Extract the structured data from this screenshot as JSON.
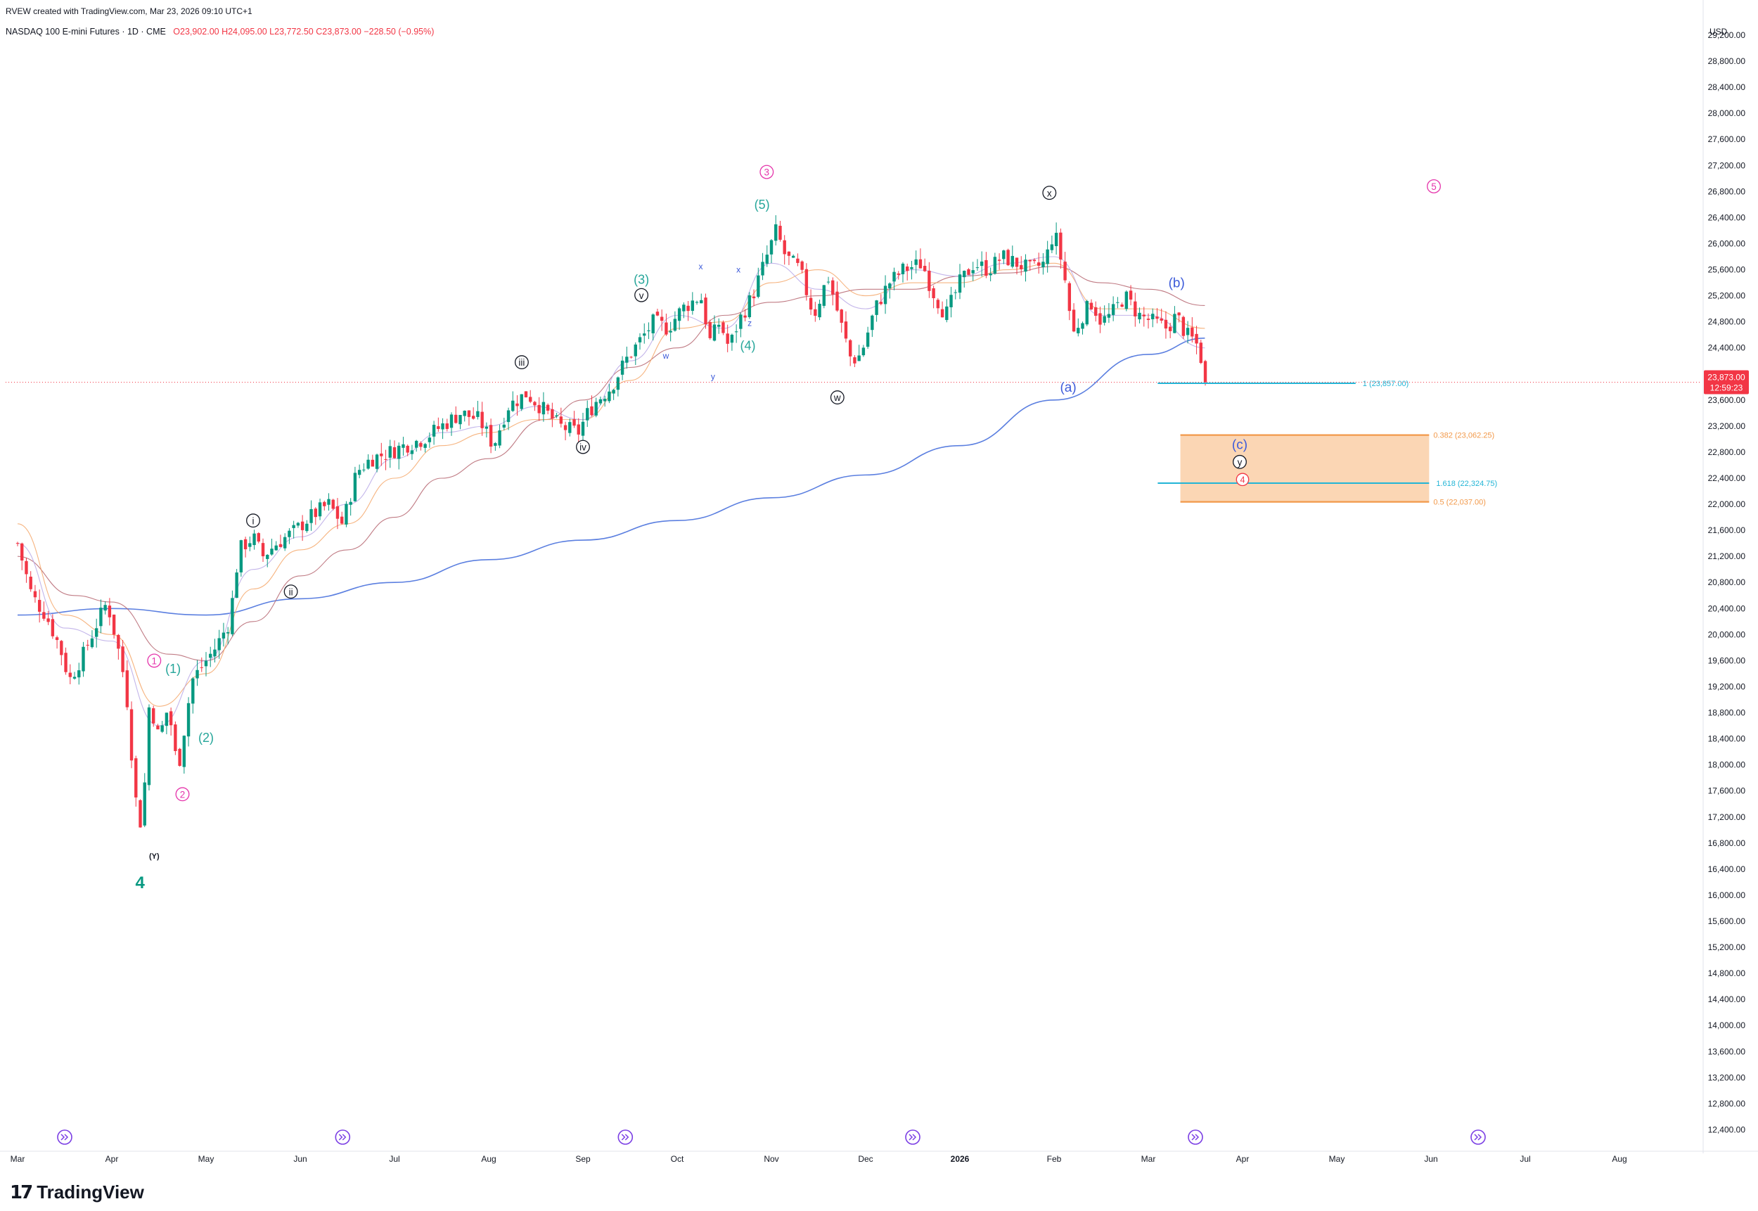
{
  "header": {
    "created_by": "RVEW created with TradingView.com, Mar 23, 2026 09:10 UTC+1",
    "symbol": "NASDAQ 100 E-mini Futures · 1D · CME",
    "ohlc": "O23,902.00 H24,095.00 L23,772.50 C23,873.00 −228.50 (−0.95%)"
  },
  "colors": {
    "up": "#089981",
    "down": "#f23645",
    "ma200": "#5b7fe0",
    "ma_brown": "#b5646e",
    "ma_orange": "#f5a76a",
    "ma_lavender": "#b9a8e6",
    "pink": "#e535ab",
    "teal": "#26a69a",
    "blue_label": "#3d5bd9",
    "fib_line": "#22b5d6",
    "zone_fill": "#f9c89b",
    "zone_border": "#f2994a"
  },
  "chart_data": {
    "type": "candlestick",
    "currency": "USD",
    "y_axis": {
      "range": [
        12200,
        29200
      ],
      "ticks": [
        "12,400.00",
        "12,800.00",
        "13,200.00",
        "13,600.00",
        "14,000.00",
        "14,400.00",
        "14,800.00",
        "15,200.00",
        "15,600.00",
        "16,000.00",
        "16,400.00",
        "16,800.00",
        "17,200.00",
        "17,600.00",
        "18,000.00",
        "18,400.00",
        "18,800.00",
        "19,200.00",
        "19,600.00",
        "20,000.00",
        "20,400.00",
        "20,800.00",
        "21,200.00",
        "21,600.00",
        "22,000.00",
        "22,400.00",
        "22,800.00",
        "23,200.00",
        "23,600.00",
        "24,000.00",
        "24,400.00",
        "24,800.00",
        "25,200.00",
        "25,600.00",
        "26,000.00",
        "26,400.00",
        "26,800.00",
        "27,200.00",
        "27,600.00",
        "28,000.00",
        "28,400.00",
        "28,800.00",
        "29,200.00"
      ],
      "last_price": "23,873.00",
      "countdown": "12:59:23",
      "last_value": 23873
    },
    "x_axis": {
      "labels": [
        {
          "text": "Mar",
          "month": 0
        },
        {
          "text": "Apr",
          "month": 1
        },
        {
          "text": "May",
          "month": 2
        },
        {
          "text": "Jun",
          "month": 3
        },
        {
          "text": "Jul",
          "month": 4
        },
        {
          "text": "Aug",
          "month": 5
        },
        {
          "text": "Sep",
          "month": 6
        },
        {
          "text": "Oct",
          "month": 7
        },
        {
          "text": "Nov",
          "month": 8
        },
        {
          "text": "Dec",
          "month": 9
        },
        {
          "text": "2026",
          "month": 10,
          "bold": true
        },
        {
          "text": "Feb",
          "month": 11
        },
        {
          "text": "Mar",
          "month": 12
        },
        {
          "text": "Apr",
          "month": 13
        },
        {
          "text": "May",
          "month": 14
        },
        {
          "text": "Jun",
          "month": 15
        },
        {
          "text": "Jul",
          "month": 16
        },
        {
          "text": "Aug",
          "month": 17
        }
      ]
    },
    "price_path": [
      [
        0.0,
        21400
      ],
      [
        0.15,
        20600
      ],
      [
        0.3,
        20300
      ],
      [
        0.45,
        19800
      ],
      [
        0.55,
        19300
      ],
      [
        0.7,
        19700
      ],
      [
        0.85,
        20200
      ],
      [
        0.95,
        20500
      ],
      [
        1.05,
        19900
      ],
      [
        1.15,
        19200
      ],
      [
        1.25,
        17500
      ],
      [
        1.32,
        17000
      ],
      [
        1.4,
        19000
      ],
      [
        1.5,
        18400
      ],
      [
        1.6,
        18900
      ],
      [
        1.7,
        17900
      ],
      [
        1.85,
        19300
      ],
      [
        2.0,
        19600
      ],
      [
        2.1,
        19800
      ],
      [
        2.25,
        20200
      ],
      [
        2.35,
        21300
      ],
      [
        2.5,
        21500
      ],
      [
        2.6,
        21200
      ],
      [
        2.75,
        21400
      ],
      [
        2.95,
        21600
      ],
      [
        3.1,
        21800
      ],
      [
        3.3,
        22000
      ],
      [
        3.45,
        21700
      ],
      [
        3.6,
        22500
      ],
      [
        3.75,
        22700
      ],
      [
        3.95,
        22800
      ],
      [
        4.1,
        22900
      ],
      [
        4.3,
        23000
      ],
      [
        4.5,
        23200
      ],
      [
        4.7,
        23400
      ],
      [
        4.9,
        23300
      ],
      [
        5.05,
        22900
      ],
      [
        5.2,
        23500
      ],
      [
        5.4,
        23700
      ],
      [
        5.55,
        23500
      ],
      [
        5.75,
        23200
      ],
      [
        5.95,
        23100
      ],
      [
        6.05,
        23400
      ],
      [
        6.15,
        23600
      ],
      [
        6.3,
        23800
      ],
      [
        6.45,
        24200
      ],
      [
        6.6,
        24500
      ],
      [
        6.75,
        24800
      ],
      [
        6.9,
        24700
      ],
      [
        7.05,
        25000
      ],
      [
        7.25,
        25200
      ],
      [
        7.35,
        24500
      ],
      [
        7.45,
        24800
      ],
      [
        7.55,
        24400
      ],
      [
        7.65,
        24800
      ],
      [
        7.8,
        25200
      ],
      [
        7.95,
        25800
      ],
      [
        8.05,
        26200
      ],
      [
        8.15,
        25800
      ],
      [
        8.3,
        25600
      ],
      [
        8.45,
        24900
      ],
      [
        8.6,
        25500
      ],
      [
        8.75,
        24700
      ],
      [
        8.85,
        24200
      ],
      [
        8.95,
        24300
      ],
      [
        9.1,
        25000
      ],
      [
        9.25,
        25400
      ],
      [
        9.4,
        25600
      ],
      [
        9.6,
        25700
      ],
      [
        9.7,
        25300
      ],
      [
        9.85,
        24900
      ],
      [
        10.0,
        25400
      ],
      [
        10.15,
        25700
      ],
      [
        10.3,
        25600
      ],
      [
        10.45,
        25800
      ],
      [
        10.6,
        25700
      ],
      [
        10.75,
        25600
      ],
      [
        10.9,
        25700
      ],
      [
        11.0,
        26200
      ],
      [
        11.1,
        25600
      ],
      [
        11.2,
        24600
      ],
      [
        11.3,
        24900
      ],
      [
        11.4,
        25100
      ],
      [
        11.5,
        24800
      ],
      [
        11.6,
        24900
      ],
      [
        11.75,
        25200
      ],
      [
        11.9,
        24900
      ],
      [
        12.05,
        24800
      ],
      [
        12.2,
        24700
      ],
      [
        12.3,
        24900
      ],
      [
        12.4,
        24600
      ],
      [
        12.5,
        24500
      ],
      [
        12.55,
        24300
      ],
      [
        12.62,
        23873
      ]
    ],
    "moving_averages": [
      {
        "period": 200,
        "color_key": "ma200",
        "path": [
          [
            0,
            20300
          ],
          [
            1,
            20400
          ],
          [
            2,
            20300
          ],
          [
            3,
            20550
          ],
          [
            4,
            20800
          ],
          [
            5,
            21150
          ],
          [
            6,
            21450
          ],
          [
            7,
            21750
          ],
          [
            8,
            22100
          ],
          [
            9,
            22450
          ],
          [
            10,
            22900
          ],
          [
            11,
            23600
          ],
          [
            12,
            24300
          ],
          [
            12.6,
            24550
          ]
        ]
      },
      {
        "period": 50,
        "color_key": "ma_brown",
        "path": [
          [
            0,
            21200
          ],
          [
            0.6,
            20600
          ],
          [
            1,
            20500
          ],
          [
            1.6,
            19700
          ],
          [
            2,
            19600
          ],
          [
            2.5,
            20200
          ],
          [
            3,
            20900
          ],
          [
            3.5,
            21300
          ],
          [
            4,
            21800
          ],
          [
            4.5,
            22400
          ],
          [
            5,
            22700
          ],
          [
            5.6,
            23300
          ],
          [
            6,
            23600
          ],
          [
            6.5,
            24100
          ],
          [
            7,
            24400
          ],
          [
            7.5,
            24900
          ],
          [
            8,
            25100
          ],
          [
            8.5,
            25200
          ],
          [
            9,
            25300
          ],
          [
            9.5,
            25300
          ],
          [
            10,
            25500
          ],
          [
            10.5,
            25550
          ],
          [
            11,
            25650
          ],
          [
            11.5,
            25400
          ],
          [
            12,
            25300
          ],
          [
            12.6,
            25050
          ]
        ]
      },
      {
        "period": 20,
        "color_key": "ma_orange",
        "path": [
          [
            0,
            21700
          ],
          [
            0.5,
            20300
          ],
          [
            1,
            20000
          ],
          [
            1.5,
            18900
          ],
          [
            2,
            19400
          ],
          [
            2.5,
            20700
          ],
          [
            3,
            21300
          ],
          [
            3.5,
            21700
          ],
          [
            4,
            22400
          ],
          [
            4.5,
            22900
          ],
          [
            5,
            23100
          ],
          [
            5.5,
            23300
          ],
          [
            6,
            23300
          ],
          [
            6.5,
            23900
          ],
          [
            7,
            24700
          ],
          [
            7.5,
            24800
          ],
          [
            8,
            25400
          ],
          [
            8.5,
            25600
          ],
          [
            9,
            25200
          ],
          [
            9.5,
            25400
          ],
          [
            10,
            25400
          ],
          [
            10.5,
            25600
          ],
          [
            11,
            25700
          ],
          [
            11.5,
            25000
          ],
          [
            12,
            25000
          ],
          [
            12.6,
            24700
          ]
        ]
      },
      {
        "period": 10,
        "color_key": "ma_lavender",
        "path": [
          [
            0,
            21400
          ],
          [
            0.5,
            20100
          ],
          [
            1,
            19900
          ],
          [
            1.5,
            18600
          ],
          [
            2,
            19600
          ],
          [
            2.5,
            21000
          ],
          [
            3,
            21500
          ],
          [
            3.5,
            22000
          ],
          [
            4,
            22700
          ],
          [
            4.5,
            23100
          ],
          [
            5,
            23200
          ],
          [
            5.5,
            23500
          ],
          [
            6,
            23300
          ],
          [
            6.5,
            24200
          ],
          [
            7,
            24900
          ],
          [
            7.5,
            24700
          ],
          [
            8,
            25700
          ],
          [
            8.5,
            25300
          ],
          [
            9,
            25000
          ],
          [
            9.5,
            25600
          ],
          [
            10,
            25500
          ],
          [
            10.5,
            25700
          ],
          [
            11,
            25800
          ],
          [
            11.5,
            24900
          ],
          [
            12,
            24900
          ],
          [
            12.6,
            24400
          ]
        ]
      }
    ],
    "wave_labels": [
      {
        "text": "4",
        "month": 1.3,
        "price": 16200,
        "color_key": "up",
        "size": 24,
        "bold": true,
        "circle": false
      },
      {
        "text": "(Y)",
        "month": 1.45,
        "price": 16600,
        "color_key": "black",
        "size": 11,
        "bold": true,
        "circle": false
      },
      {
        "text": "1",
        "month": 1.45,
        "price": 19600,
        "color_key": "pink",
        "size": 15,
        "circle": true
      },
      {
        "text": "2",
        "month": 1.75,
        "price": 17550,
        "color_key": "pink",
        "size": 15,
        "circle": true
      },
      {
        "text": "3",
        "month": 7.95,
        "price": 27100,
        "color_key": "pink",
        "size": 15,
        "circle": true
      },
      {
        "text": "4",
        "month": 13.0,
        "price": 22380,
        "color_key": "down",
        "size": 14,
        "circle": true
      },
      {
        "text": "5",
        "month": 15.03,
        "price": 26880,
        "color_key": "pink",
        "size": 15,
        "circle": true
      },
      {
        "text": "(1)",
        "month": 1.65,
        "price": 19480,
        "color_key": "teal",
        "size": 18,
        "circle": false
      },
      {
        "text": "(2)",
        "month": 2.0,
        "price": 18420,
        "color_key": "teal",
        "size": 18,
        "circle": false
      },
      {
        "text": "(3)",
        "month": 6.62,
        "price": 25450,
        "color_key": "teal",
        "size": 18,
        "circle": false
      },
      {
        "text": "(4)",
        "month": 7.75,
        "price": 24440,
        "color_key": "teal",
        "size": 18,
        "circle": false
      },
      {
        "text": "(5)",
        "month": 7.9,
        "price": 26600,
        "color_key": "teal",
        "size": 18,
        "circle": false
      },
      {
        "text": "i",
        "month": 2.5,
        "price": 21750,
        "color_key": "black",
        "size": 15,
        "circle": true
      },
      {
        "text": "ii",
        "month": 2.9,
        "price": 20660,
        "color_key": "black",
        "size": 15,
        "circle": true
      },
      {
        "text": "iii",
        "month": 5.35,
        "price": 24180,
        "color_key": "black",
        "size": 15,
        "circle": true
      },
      {
        "text": "iv",
        "month": 6.0,
        "price": 22880,
        "color_key": "black",
        "size": 15,
        "circle": true
      },
      {
        "text": "v",
        "month": 6.62,
        "price": 25210,
        "color_key": "black",
        "size": 15,
        "circle": true
      },
      {
        "text": "w",
        "month": 8.7,
        "price": 23640,
        "color_key": "black",
        "size": 15,
        "circle": true
      },
      {
        "text": "x",
        "month": 10.95,
        "price": 26780,
        "color_key": "black",
        "size": 15,
        "circle": true
      },
      {
        "text": "y",
        "month": 12.97,
        "price": 22650,
        "color_key": "black",
        "size": 15,
        "circle": true
      },
      {
        "text": "w",
        "month": 6.88,
        "price": 24280,
        "color_key": "blue_label",
        "size": 12,
        "circle": false
      },
      {
        "text": "x",
        "month": 7.25,
        "price": 25650,
        "color_key": "blue_label",
        "size": 12,
        "circle": false
      },
      {
        "text": "y",
        "month": 7.38,
        "price": 23960,
        "color_key": "blue_label",
        "size": 12,
        "circle": false
      },
      {
        "text": "x",
        "month": 7.65,
        "price": 25600,
        "color_key": "blue_label",
        "size": 12,
        "circle": false
      },
      {
        "text": "z",
        "month": 7.77,
        "price": 24780,
        "color_key": "blue_label",
        "size": 12,
        "circle": false
      },
      {
        "text": "(a)",
        "month": 11.15,
        "price": 23800,
        "color_key": "blue_label",
        "size": 19,
        "circle": false
      },
      {
        "text": "(b)",
        "month": 12.3,
        "price": 25400,
        "color_key": "blue_label",
        "size": 19,
        "circle": false
      },
      {
        "text": "(c)",
        "month": 12.97,
        "price": 22920,
        "color_key": "blue_label",
        "size": 19,
        "circle": false
      }
    ],
    "fib_levels": [
      {
        "label": "1 (23,857.00)",
        "price": 23857,
        "start": 12.1,
        "end": 14.2,
        "kind": "line"
      },
      {
        "label": "1.618 (22,324.75)",
        "price": 22324.75,
        "start": 12.1,
        "end": 14.98,
        "kind": "line"
      },
      {
        "label": "0.382 (23,062.25)",
        "price": 23062.25,
        "start": 12.34,
        "end": 14.98,
        "kind": "zone-top"
      },
      {
        "label": "0.5 (22,037.00)",
        "price": 22037,
        "start": 12.34,
        "end": 14.98,
        "kind": "zone-bottom"
      }
    ],
    "event_markers": [
      0.5,
      3.45,
      6.45,
      9.5,
      12.5,
      15.5
    ]
  },
  "branding": {
    "logo_text": "TradingView"
  }
}
